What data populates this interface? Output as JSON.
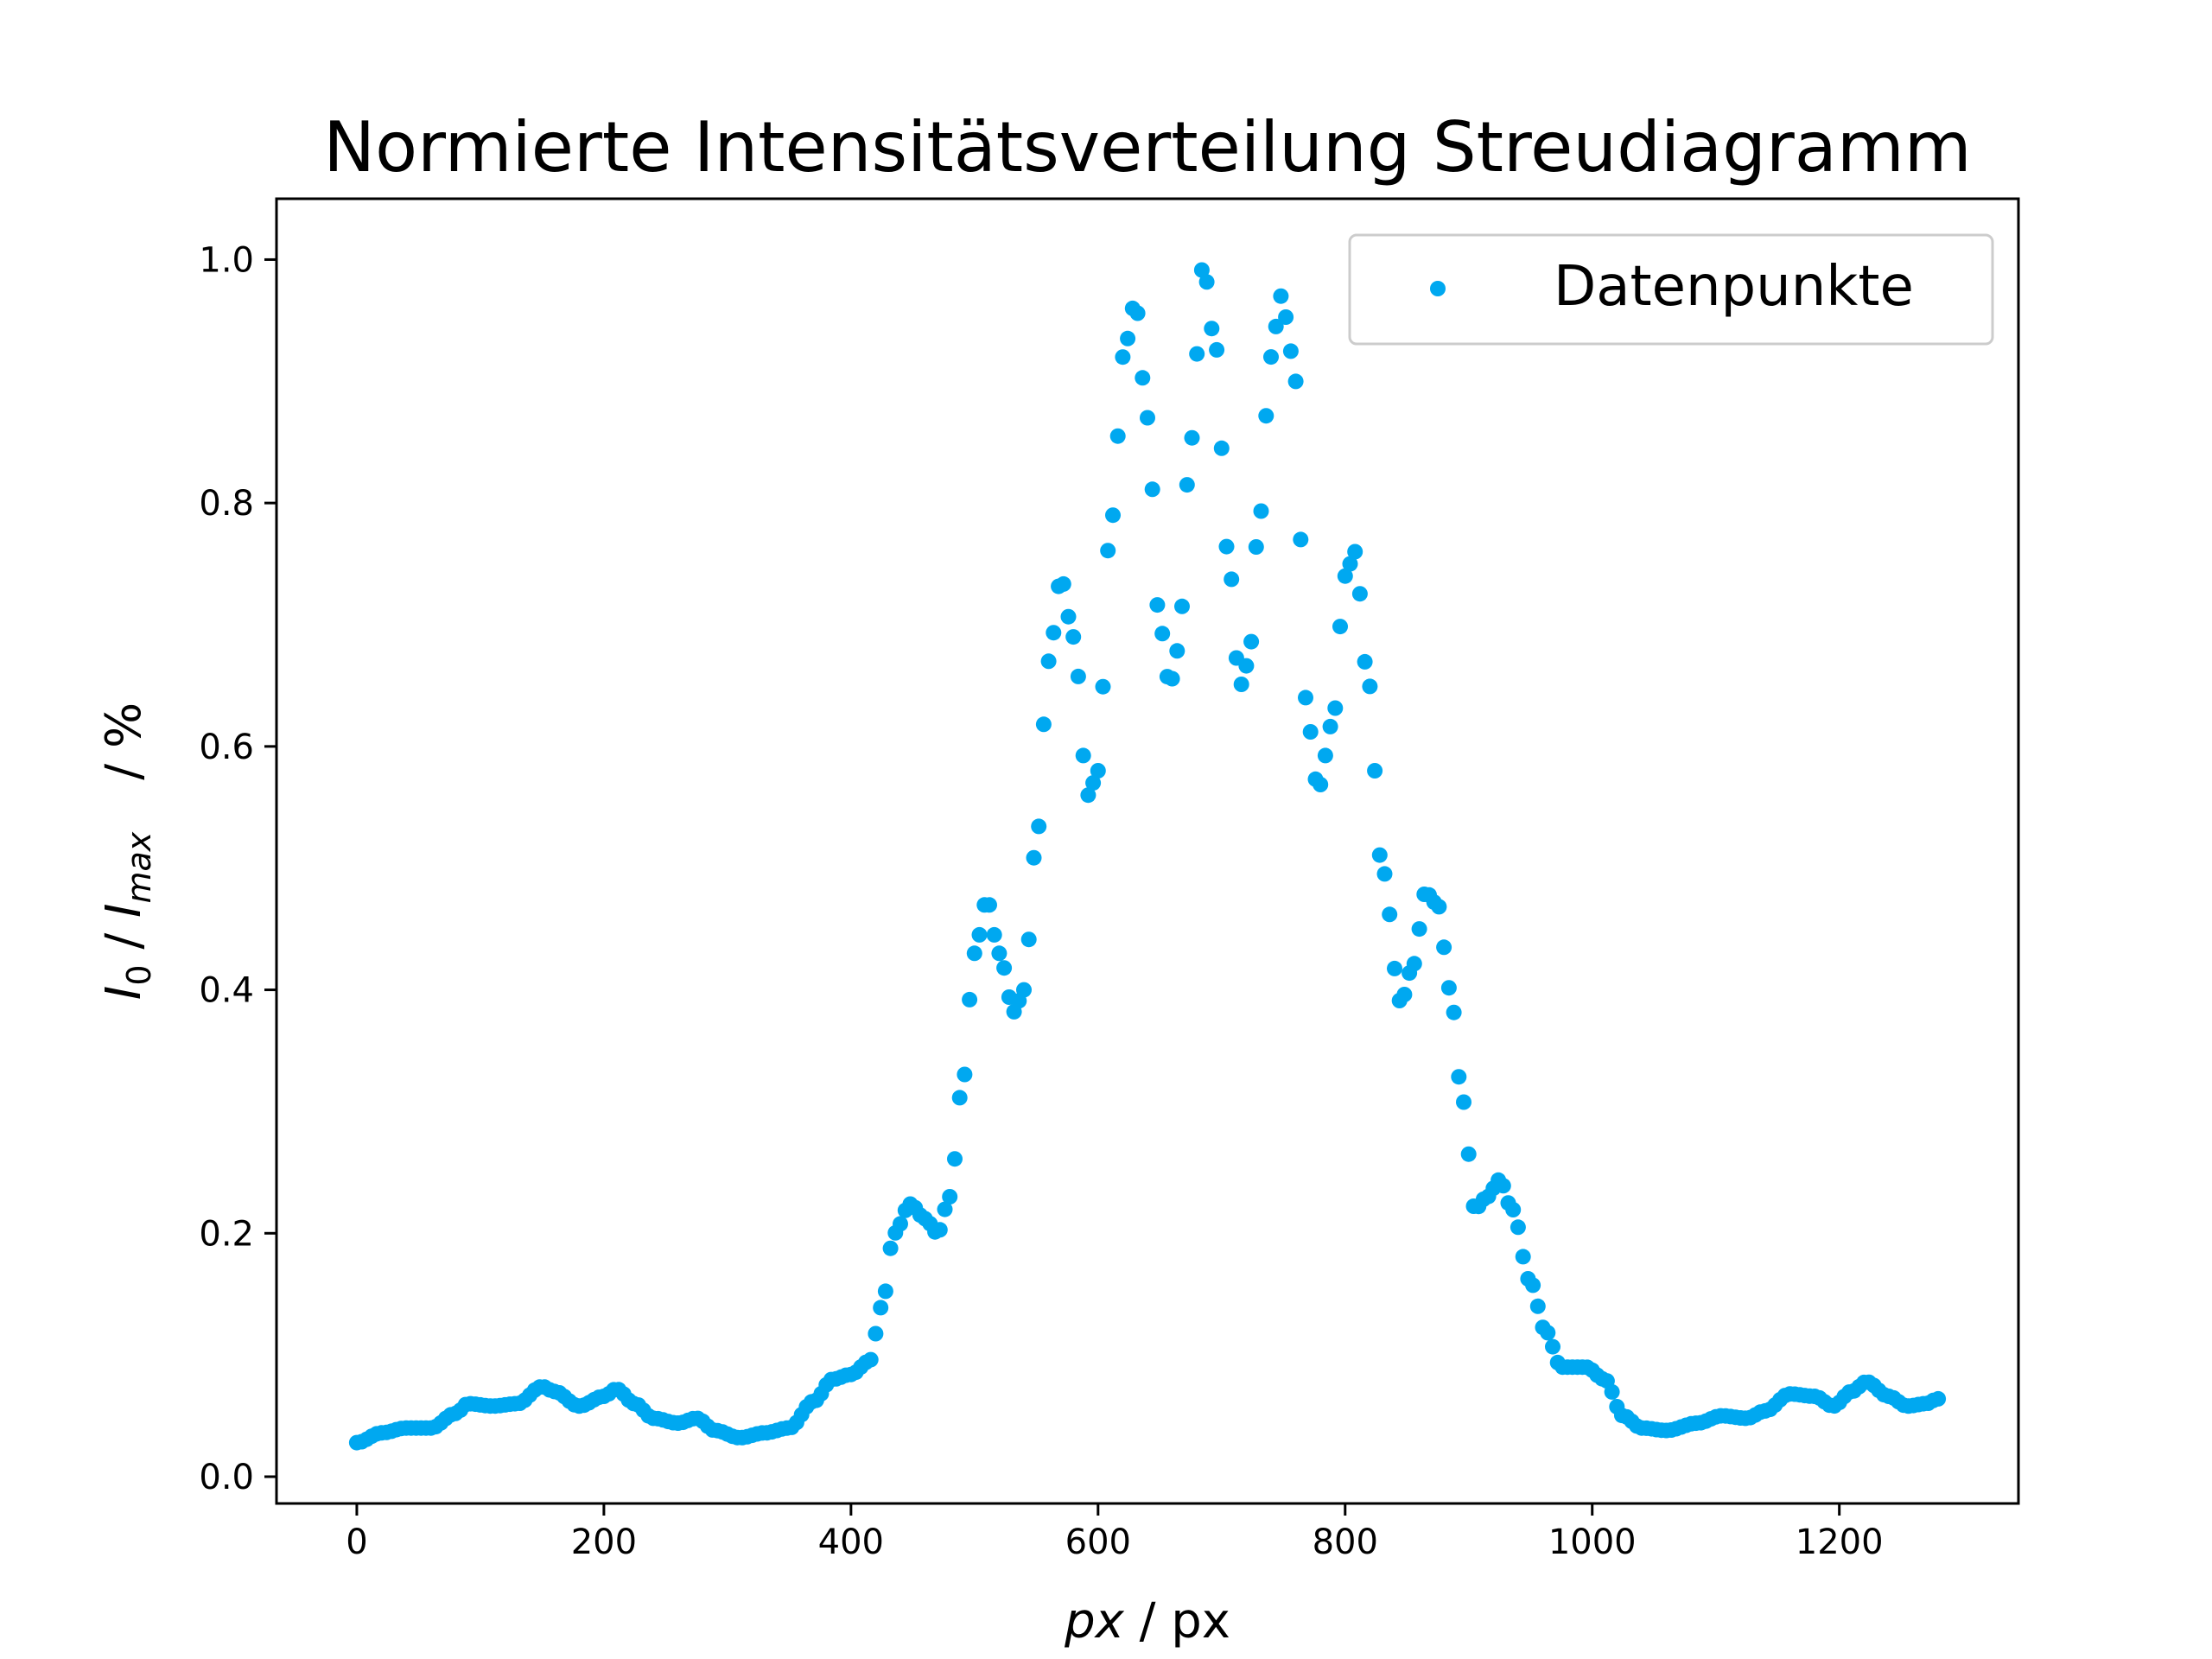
{
  "chart_data": {
    "type": "scatter",
    "title": "Normierte Intensitätsverteilung Streudiagramm",
    "xlabel": {
      "var": "px",
      "unit": " / px"
    },
    "ylabel": {
      "i0": "I",
      "i0_sub": "0",
      "sep": " / ",
      "imax": "I",
      "imax_sub": "max",
      "unit": "/ %"
    },
    "xlim": [
      -65,
      1345
    ],
    "ylim": [
      -0.022,
      1.05
    ],
    "xticks": [
      0,
      200,
      400,
      600,
      800,
      1000,
      1200
    ],
    "yticks": [
      0.0,
      0.2,
      0.4,
      0.6,
      0.8,
      1.0
    ],
    "grid": false,
    "legend": {
      "position": "top-right",
      "entries": [
        "Datenpunkte"
      ]
    },
    "marker_color": "#00a8f0",
    "series": [
      {
        "name": "Datenpunkte",
        "x_start": 0,
        "x_step": 4,
        "points": [
          [
            0,
            0.028
          ],
          [
            20,
            0.036
          ],
          [
            40,
            0.04
          ],
          [
            60,
            0.04
          ],
          [
            80,
            0.052
          ],
          [
            90,
            0.06
          ],
          [
            110,
            0.058
          ],
          [
            130,
            0.06
          ],
          [
            150,
            0.074
          ],
          [
            160,
            0.07
          ],
          [
            180,
            0.058
          ],
          [
            200,
            0.066
          ],
          [
            210,
            0.072
          ],
          [
            225,
            0.06
          ],
          [
            240,
            0.048
          ],
          [
            260,
            0.044
          ],
          [
            275,
            0.048
          ],
          [
            290,
            0.038
          ],
          [
            310,
            0.032
          ],
          [
            330,
            0.036
          ],
          [
            350,
            0.04
          ],
          [
            370,
            0.062
          ],
          [
            385,
            0.08
          ],
          [
            400,
            0.084
          ],
          [
            415,
            0.095
          ],
          [
            425,
            0.14
          ],
          [
            435,
            0.2
          ],
          [
            448,
            0.224
          ],
          [
            460,
            0.212
          ],
          [
            470,
            0.2
          ],
          [
            480,
            0.23
          ],
          [
            490,
            0.32
          ],
          [
            500,
            0.43
          ],
          [
            510,
            0.474
          ],
          [
            520,
            0.43
          ],
          [
            532,
            0.382
          ],
          [
            540,
            0.4
          ],
          [
            550,
            0.52
          ],
          [
            560,
            0.67
          ],
          [
            570,
            0.738
          ],
          [
            580,
            0.69
          ],
          [
            592,
            0.56
          ],
          [
            600,
            0.58
          ],
          [
            610,
            0.78
          ],
          [
            622,
            0.93
          ],
          [
            630,
            0.965
          ],
          [
            640,
            0.87
          ],
          [
            650,
            0.7
          ],
          [
            658,
            0.65
          ],
          [
            665,
            0.68
          ],
          [
            675,
            0.85
          ],
          [
            685,
            0.995
          ],
          [
            695,
            0.93
          ],
          [
            705,
            0.76
          ],
          [
            715,
            0.65
          ],
          [
            722,
            0.67
          ],
          [
            730,
            0.78
          ],
          [
            740,
            0.92
          ],
          [
            748,
            0.97
          ],
          [
            758,
            0.92
          ],
          [
            770,
            0.62
          ],
          [
            778,
            0.565
          ],
          [
            790,
            0.62
          ],
          [
            800,
            0.74
          ],
          [
            808,
            0.76
          ],
          [
            818,
            0.66
          ],
          [
            830,
            0.5
          ],
          [
            845,
            0.39
          ],
          [
            855,
            0.42
          ],
          [
            865,
            0.48
          ],
          [
            875,
            0.47
          ],
          [
            885,
            0.4
          ],
          [
            895,
            0.31
          ],
          [
            905,
            0.22
          ],
          [
            915,
            0.23
          ],
          [
            925,
            0.244
          ],
          [
            935,
            0.22
          ],
          [
            950,
            0.16
          ],
          [
            962,
            0.12
          ],
          [
            975,
            0.09
          ],
          [
            995,
            0.09
          ],
          [
            1010,
            0.08
          ],
          [
            1025,
            0.05
          ],
          [
            1040,
            0.04
          ],
          [
            1060,
            0.038
          ],
          [
            1085,
            0.044
          ],
          [
            1105,
            0.05
          ],
          [
            1125,
            0.048
          ],
          [
            1140,
            0.054
          ],
          [
            1160,
            0.068
          ],
          [
            1180,
            0.066
          ],
          [
            1195,
            0.058
          ],
          [
            1210,
            0.07
          ],
          [
            1222,
            0.078
          ],
          [
            1240,
            0.066
          ],
          [
            1255,
            0.058
          ],
          [
            1270,
            0.06
          ],
          [
            1280,
            0.064
          ]
        ]
      }
    ]
  }
}
